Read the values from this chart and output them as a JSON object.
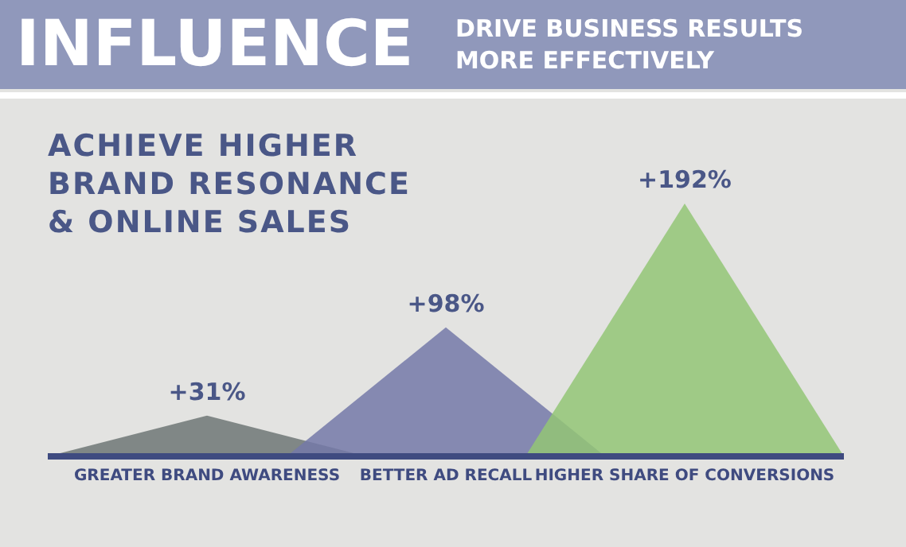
{
  "chart_data": {
    "type": "area",
    "title": "INFLUENCE",
    "subtitle": "DRIVE BUSINESS RESULTS MORE EFFECTIVELY",
    "annotations": [
      "ACHIEVE HIGHER BRAND RESONANCE & ONLINE SALES"
    ],
    "categories": [
      null,
      null,
      "GREATER BRAND AWARENESS",
      null,
      null,
      "BETTER AD RECALL",
      null,
      null,
      "HIGHER SHARE OF CONVERSIONS",
      null,
      null
    ],
    "series": [
      {
        "color": "#6e7775",
        "values": [
          0,
          null,
          31,
          null,
          0,
          null,
          null,
          null,
          null,
          null,
          null
        ],
        "value_labels": [
          null,
          null,
          "+31%",
          null,
          null,
          null,
          null,
          null,
          null,
          null,
          null
        ]
      },
      {
        "color": "#7479a8",
        "values": [
          null,
          null,
          null,
          0,
          null,
          98,
          null,
          0,
          null,
          null,
          null
        ],
        "value_labels": [
          null,
          null,
          null,
          null,
          null,
          "+98%",
          null,
          null,
          null,
          null,
          null
        ]
      },
      {
        "color": "#93c676",
        "values": [
          null,
          null,
          null,
          null,
          null,
          null,
          0,
          null,
          192,
          null,
          0
        ],
        "value_labels": [
          null,
          null,
          null,
          null,
          null,
          null,
          null,
          null,
          "+192%",
          null,
          null
        ]
      }
    ],
    "legend": false,
    "grid": false
  }
}
